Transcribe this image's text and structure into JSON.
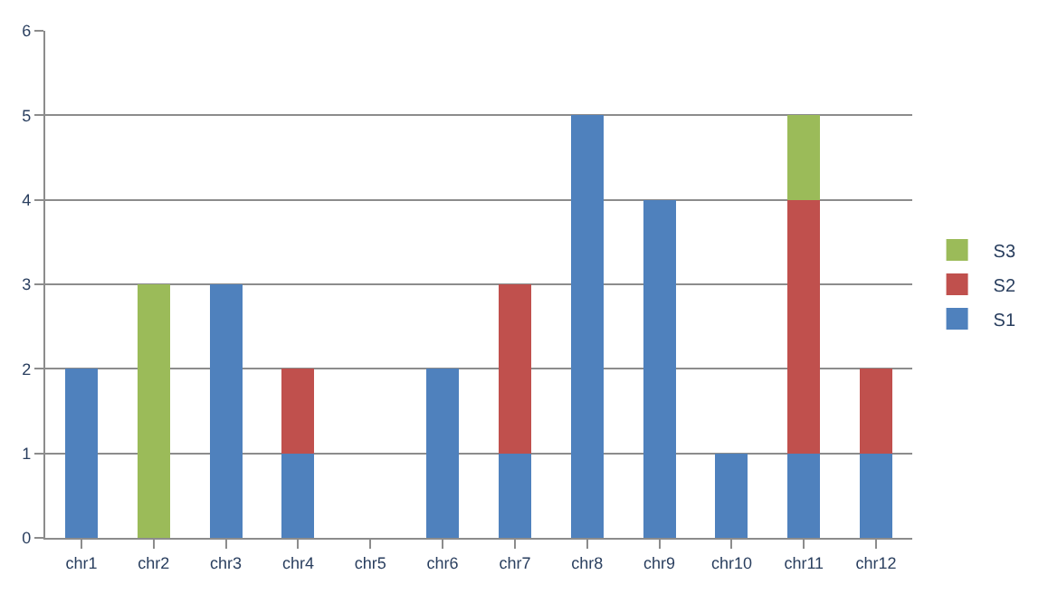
{
  "chart_data": {
    "type": "bar",
    "stacked": true,
    "categories": [
      "chr1",
      "chr2",
      "chr3",
      "chr4",
      "chr5",
      "chr6",
      "chr7",
      "chr8",
      "chr9",
      "chr10",
      "chr11",
      "chr12"
    ],
    "series": [
      {
        "name": "S1",
        "color": "#4f81bd",
        "values": [
          2,
          null,
          3,
          1,
          null,
          2,
          1,
          5,
          4,
          1,
          1,
          1
        ]
      },
      {
        "name": "S2",
        "color": "#c0504d",
        "values": [
          null,
          null,
          null,
          1,
          null,
          null,
          2,
          null,
          null,
          null,
          3,
          1
        ]
      },
      {
        "name": "S3",
        "color": "#9bbb59",
        "values": [
          null,
          3,
          null,
          null,
          null,
          null,
          null,
          null,
          null,
          null,
          1,
          null
        ]
      }
    ],
    "ylim": [
      0,
      6
    ],
    "yticks": [
      0,
      1,
      2,
      3,
      4,
      5,
      6
    ],
    "grid": "y",
    "legend": "right"
  }
}
